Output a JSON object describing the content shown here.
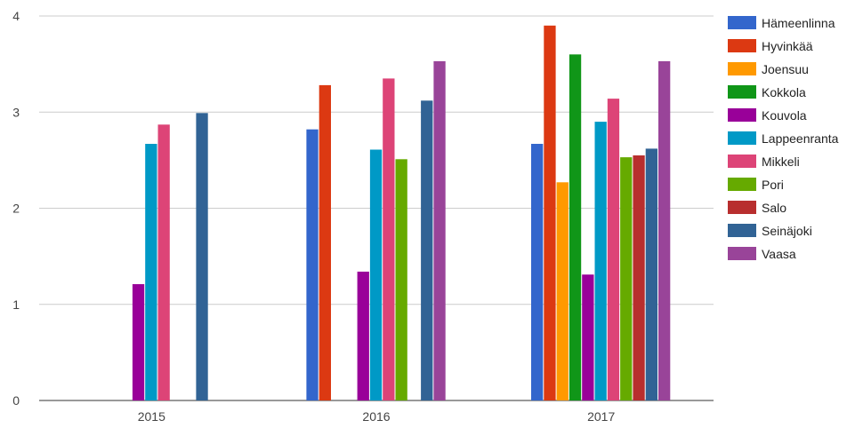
{
  "chart_data": {
    "type": "bar",
    "title": "",
    "xlabel": "",
    "ylabel": "",
    "categories": [
      "2015",
      "2016",
      "2017"
    ],
    "ylim": [
      0,
      4
    ],
    "yticks": [
      "0",
      "1",
      "2",
      "3",
      "4"
    ],
    "grid": true,
    "legend_position": "right",
    "series": [
      {
        "name": "Hämeenlinna",
        "color": "#3366cc",
        "values": [
          null,
          2.82,
          2.67
        ]
      },
      {
        "name": "Hyvinkää",
        "color": "#dc3912",
        "values": [
          null,
          3.28,
          3.9
        ]
      },
      {
        "name": "Joensuu",
        "color": "#ff9900",
        "values": [
          null,
          null,
          2.27
        ]
      },
      {
        "name": "Kokkola",
        "color": "#109618",
        "values": [
          null,
          null,
          3.6
        ]
      },
      {
        "name": "Kouvola",
        "color": "#990099",
        "values": [
          1.21,
          1.34,
          1.31
        ]
      },
      {
        "name": "Lappeenranta",
        "color": "#0099c6",
        "values": [
          2.67,
          2.61,
          2.9
        ]
      },
      {
        "name": "Mikkeli",
        "color": "#dd4477",
        "values": [
          2.87,
          3.35,
          3.14
        ]
      },
      {
        "name": "Pori",
        "color": "#66aa00",
        "values": [
          null,
          2.51,
          2.53
        ]
      },
      {
        "name": "Salo",
        "color": "#b82e2e",
        "values": [
          null,
          null,
          2.55
        ]
      },
      {
        "name": "Seinäjoki",
        "color": "#316395",
        "values": [
          2.99,
          3.12,
          2.62
        ]
      },
      {
        "name": "Vaasa",
        "color": "#994499",
        "values": [
          null,
          3.53,
          3.53
        ]
      }
    ]
  }
}
